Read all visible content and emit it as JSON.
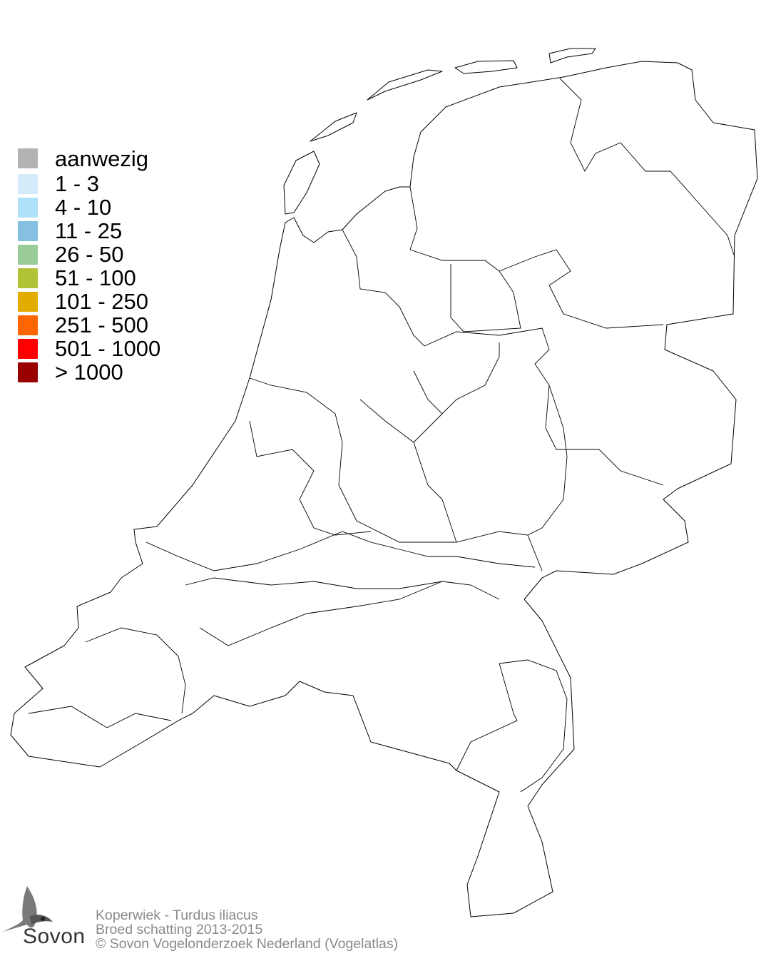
{
  "legend": {
    "items": [
      {
        "label": "aanwezig",
        "color": "#b3b3b3"
      },
      {
        "label": "1 - 3",
        "color": "#d4ecfa"
      },
      {
        "label": "4 - 10",
        "color": "#b0e2fa"
      },
      {
        "label": "11 - 25",
        "color": "#86c0e0"
      },
      {
        "label": "26 - 50",
        "color": "#99cc99"
      },
      {
        "label": "51 - 100",
        "color": "#b2c235"
      },
      {
        "label": "101 - 250",
        "color": "#e2ad00"
      },
      {
        "label": "251 - 500",
        "color": "#ff6600"
      },
      {
        "label": "501 - 1000",
        "color": "#ff0000"
      },
      {
        "label": "> 1000",
        "color": "#990000"
      }
    ]
  },
  "footer": {
    "species": "Koperwiek - Turdus iliacus",
    "subtitle": "Broed schatting 2013-2015",
    "copyright": "© Sovon Vogelonderzoek Nederland (Vogelatlas)"
  },
  "logo": {
    "text": "Sovon",
    "icon": "swallow-icon"
  },
  "map": {
    "region": "Netherlands",
    "fill": "#ffffff",
    "stroke": "#000000"
  }
}
